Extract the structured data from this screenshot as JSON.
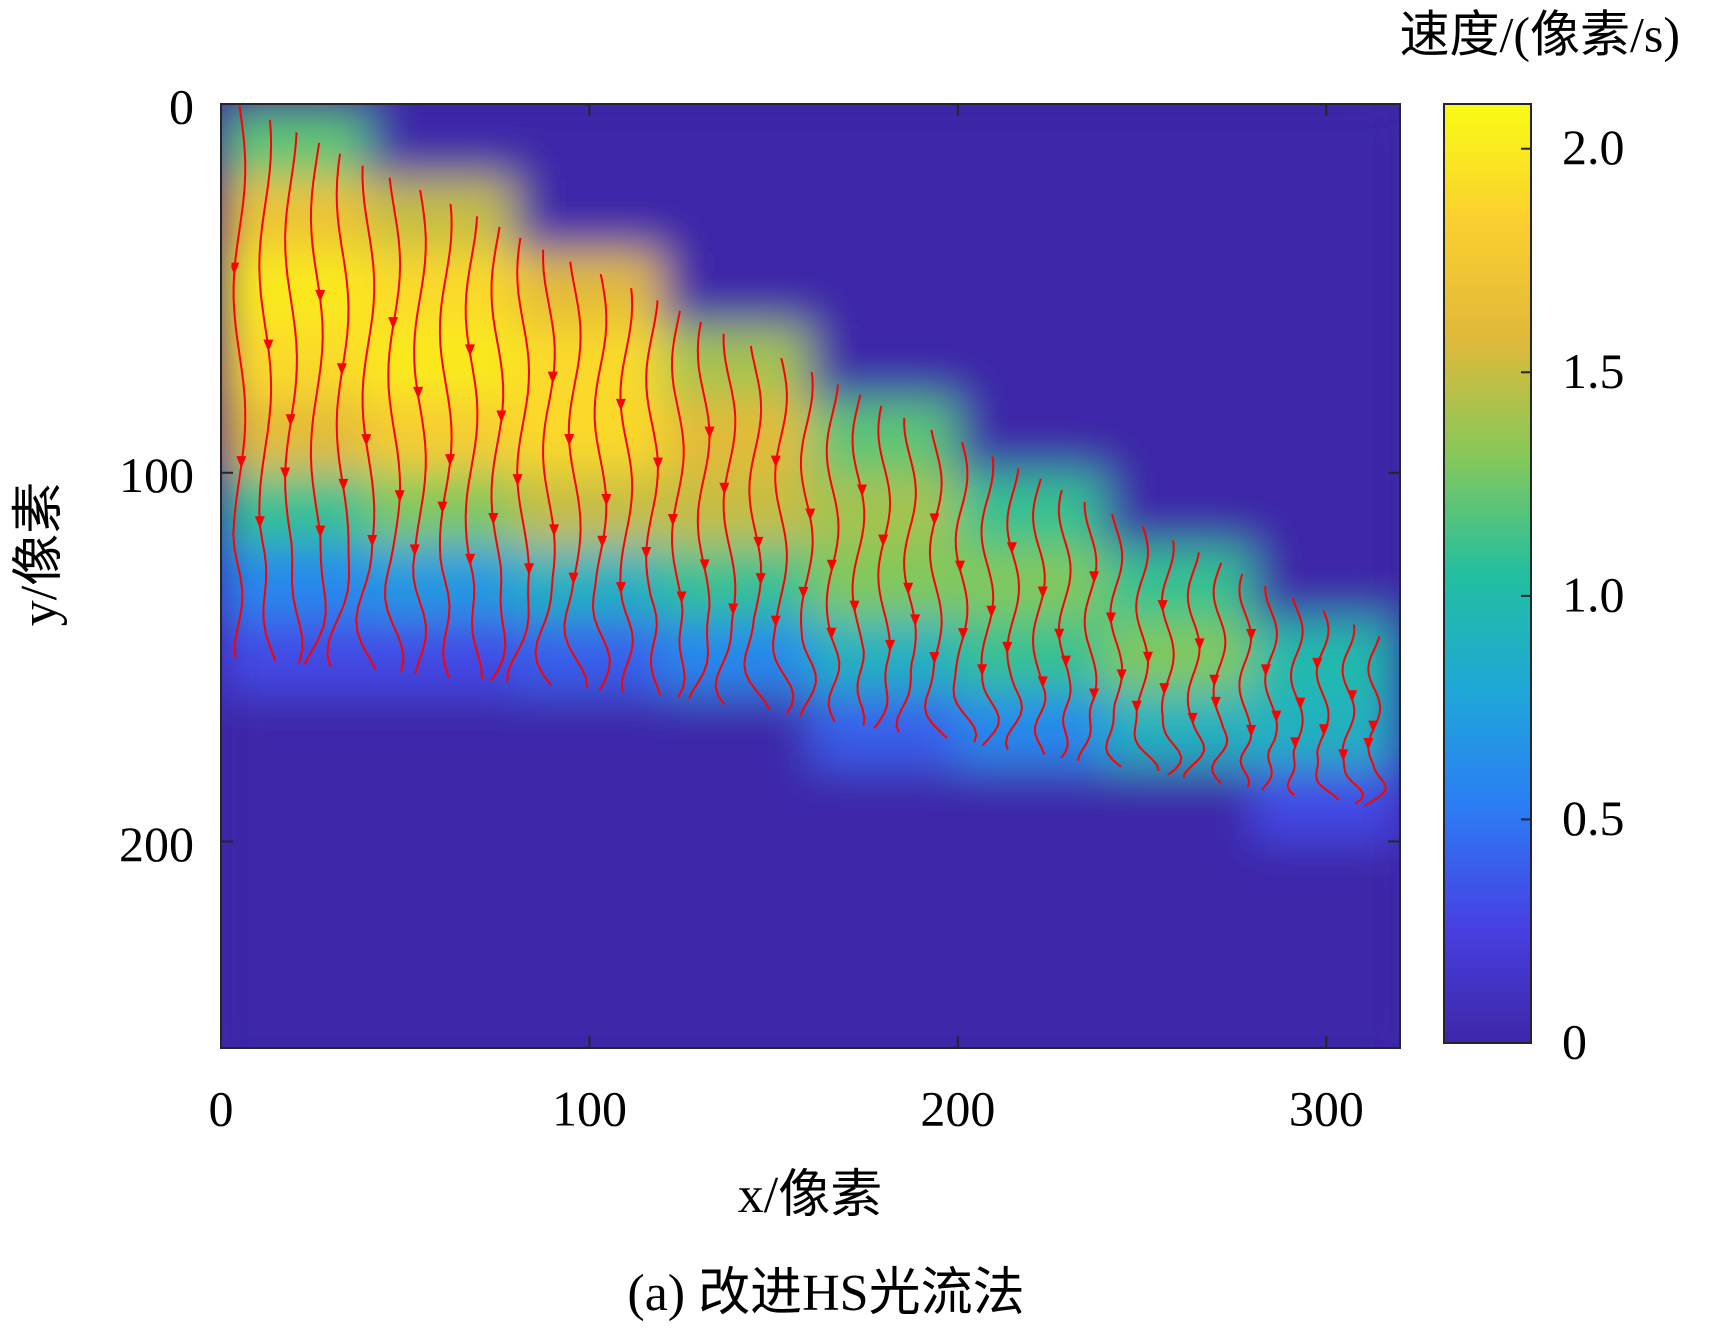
{
  "chart_data": {
    "type": "heatmap",
    "colorbar_title": "速度/(像素/s)",
    "xlabel": "x/像素",
    "ylabel": "y/像素",
    "caption": "(a) 改进HS光流法",
    "x": [
      20,
      60,
      100,
      140,
      180,
      220,
      260,
      300
    ],
    "y": [
      10,
      30,
      50,
      70,
      90,
      110,
      130,
      150,
      170,
      190,
      210,
      230,
      250
    ],
    "z": [
      [
        1.2,
        0,
        0,
        0,
        0,
        0,
        0,
        0
      ],
      [
        1.7,
        1.5,
        0,
        0,
        0,
        0,
        0,
        0
      ],
      [
        2.0,
        1.9,
        1.6,
        0,
        0,
        0,
        0,
        0
      ],
      [
        1.9,
        2.0,
        1.9,
        1.4,
        0,
        0,
        0,
        0
      ],
      [
        1.6,
        1.8,
        1.9,
        1.6,
        1.2,
        0,
        0,
        0
      ],
      [
        1.1,
        1.3,
        1.5,
        1.5,
        1.4,
        1.1,
        0,
        0
      ],
      [
        0.6,
        0.7,
        0.9,
        1.1,
        1.3,
        1.3,
        1.1,
        0
      ],
      [
        0.3,
        0.3,
        0.4,
        0.6,
        0.9,
        1.1,
        1.3,
        1.0
      ],
      [
        0,
        0,
        0,
        0,
        0.4,
        0.6,
        0.9,
        0.9
      ],
      [
        0,
        0,
        0,
        0,
        0,
        0,
        0,
        0.3
      ],
      [
        0,
        0,
        0,
        0,
        0,
        0,
        0,
        0
      ],
      [
        0,
        0,
        0,
        0,
        0,
        0,
        0,
        0
      ],
      [
        0,
        0,
        0,
        0,
        0,
        0,
        0,
        0
      ]
    ],
    "region_top": [
      [
        4,
        0
      ],
      [
        320,
        147
      ]
    ],
    "region_bottom": [
      [
        0,
        150
      ],
      [
        125,
        161
      ],
      [
        320,
        192
      ]
    ],
    "xlim": [
      0,
      320
    ],
    "ylim": [
      0,
      256
    ],
    "y_reversed": true,
    "xticks": [
      0,
      100,
      200,
      300
    ],
    "yticks": [
      0,
      100,
      200
    ],
    "clim": [
      0,
      2.1
    ],
    "cticks": [
      0,
      0.5,
      {
        "value": 1,
        "label": "1.0"
      },
      1.5,
      {
        "value": 2,
        "label": "2.0"
      }
    ],
    "colormap": [
      "#3e26a8",
      "#4740e3",
      "#2c7cf5",
      "#1ea7d8",
      "#23bfa0",
      "#86c859",
      "#e0b93a",
      "#fbcf2f",
      "#f9fb15"
    ],
    "streamline_color": "#ff0000"
  }
}
